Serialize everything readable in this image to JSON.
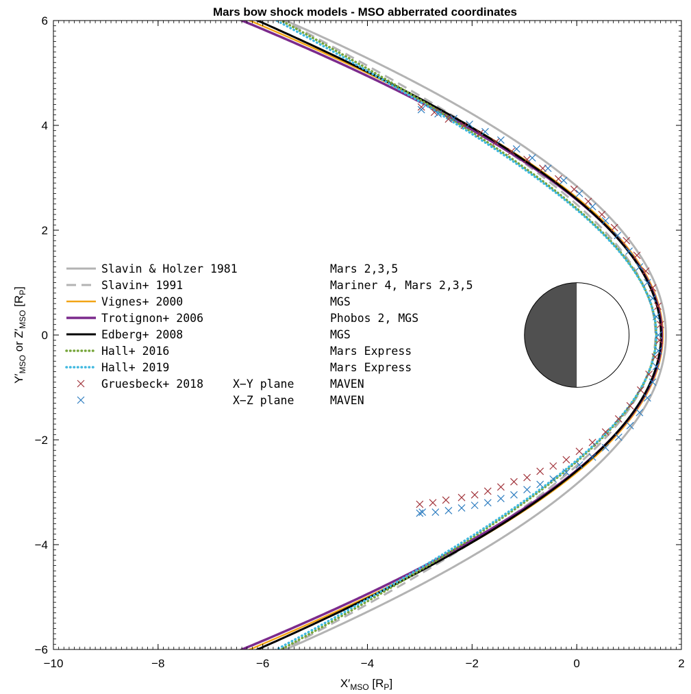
{
  "chart_data": {
    "type": "line",
    "title": "Mars bow shock models - MSO abberrated coordinates",
    "xlabel": {
      "main": "X",
      "prime": "′",
      "sub": "MSO",
      "unit_open": " [R",
      "unit_sub": "P",
      "unit_close": "]"
    },
    "ylabel": {
      "main1": "Y",
      "prime1": "′",
      "sub1": "MSO",
      "mid": " or ",
      "main2": "Z",
      "prime2": "′",
      "sub2": "MSO",
      "unit_open": " [R",
      "unit_sub": "P",
      "unit_close": "]"
    },
    "xlim": [
      -10,
      2
    ],
    "ylim": [
      -6,
      6
    ],
    "xticks": [
      -10,
      -8,
      -6,
      -4,
      -2,
      0,
      2
    ],
    "yticks": [
      -6,
      -4,
      -2,
      0,
      2,
      4,
      6
    ],
    "xtick_labels": [
      "−10",
      "−8",
      "−6",
      "−4",
      "−2",
      "0",
      "2"
    ],
    "ytick_labels": [
      "−6",
      "−4",
      "−2",
      "0",
      "2",
      "4",
      "6"
    ],
    "grid": false,
    "legend_position": "left",
    "planet": {
      "center": [
        0,
        0
      ],
      "radius": 1,
      "night_color": "#505050",
      "day_color": "#ffffff"
    },
    "series": [
      {
        "name": "Slavin & Holzer 1981",
        "plane": "",
        "mission": "Mars 2,3,5",
        "style": "solid",
        "color": "#b3b3b3",
        "width": 3,
        "conic": {
          "L": 2.33,
          "e": 1.02,
          "x0": 0.55
        }
      },
      {
        "name": "Slavin+ 1991",
        "plane": "",
        "mission": "Mariner 4, Mars 2,3,5",
        "style": "dashed",
        "color": "#b3b3b3",
        "width": 3,
        "conic": {
          "L": 1.94,
          "e": 1.08,
          "x0": 0.57
        }
      },
      {
        "name": "Vignes+ 2000",
        "plane": "",
        "mission": "MGS",
        "style": "solid",
        "color": "#f2a516",
        "width": 2.5,
        "conic": {
          "L": 2.04,
          "e": 1.03,
          "x0": 0.64
        }
      },
      {
        "name": "Trotignon+ 2006",
        "plane": "",
        "mission": "Phobos 2, MGS",
        "style": "solid",
        "color": "#7b2a8c",
        "width": 3.5,
        "conic": {
          "L": 2.0,
          "e": 1.03,
          "x0": 0.64
        }
      },
      {
        "name": "Edberg+ 2008",
        "plane": "",
        "mission": "MGS",
        "style": "solid",
        "color": "#000000",
        "width": 3,
        "conic": {
          "L": 2.02,
          "e": 1.04,
          "x0": 0.62
        }
      },
      {
        "name": "Hall+ 2016",
        "plane": "",
        "mission": "Mars Express",
        "style": "dotted",
        "color": "#76a53a",
        "width": 3.5,
        "conic": {
          "L": 1.76,
          "e": 1.1,
          "x0": 0.68
        }
      },
      {
        "name": "Hall+ 2019",
        "plane": "",
        "mission": "Mars Express",
        "style": "dotted",
        "color": "#3fb8df",
        "width": 3.5,
        "conic": {
          "L": 1.72,
          "e": 1.1,
          "x0": 0.7
        }
      }
    ],
    "scatter_series": [
      {
        "name": "Gruesbeck+ 2018",
        "plane": "X−Y plane",
        "mission": "MAVEN",
        "marker": "x",
        "color": "#a2363d",
        "points": [
          [
            -3.0,
            -3.23
          ],
          [
            -2.75,
            -3.2
          ],
          [
            -2.5,
            -3.15
          ],
          [
            -2.2,
            -3.1
          ],
          [
            -1.95,
            -3.05
          ],
          [
            -1.7,
            -2.98
          ],
          [
            -1.45,
            -2.9
          ],
          [
            -1.2,
            -2.8
          ],
          [
            -0.95,
            -2.72
          ],
          [
            -0.7,
            -2.6
          ],
          [
            -0.45,
            -2.5
          ],
          [
            -0.2,
            -2.38
          ],
          [
            0.05,
            -2.22
          ],
          [
            0.3,
            -2.05
          ],
          [
            0.55,
            -1.85
          ],
          [
            0.8,
            -1.6
          ],
          [
            1.02,
            -1.35
          ],
          [
            1.22,
            -1.05
          ],
          [
            1.38,
            -0.75
          ],
          [
            1.5,
            -0.42
          ],
          [
            1.58,
            -0.1
          ],
          [
            1.6,
            0.2
          ],
          [
            1.55,
            0.55
          ],
          [
            1.45,
            0.9
          ],
          [
            1.32,
            1.22
          ],
          [
            1.15,
            1.52
          ],
          [
            0.95,
            1.8
          ],
          [
            0.72,
            2.05
          ],
          [
            0.48,
            2.3
          ],
          [
            0.22,
            2.55
          ],
          [
            -0.05,
            2.78
          ],
          [
            -0.35,
            2.98
          ],
          [
            -0.65,
            3.18
          ],
          [
            -0.95,
            3.35
          ],
          [
            -1.25,
            3.5
          ],
          [
            -1.55,
            3.68
          ],
          [
            -1.85,
            3.85
          ],
          [
            -2.15,
            4.0
          ],
          [
            -2.45,
            4.12
          ],
          [
            -2.72,
            4.25
          ],
          [
            -2.97,
            4.35
          ]
        ]
      },
      {
        "name": "",
        "plane": "X−Z plane",
        "mission": "MAVEN",
        "marker": "x",
        "color": "#2f7ec1",
        "points": [
          [
            -3.0,
            -3.4
          ],
          [
            -2.95,
            -3.38
          ],
          [
            -2.7,
            -3.38
          ],
          [
            -2.45,
            -3.35
          ],
          [
            -2.2,
            -3.3
          ],
          [
            -1.95,
            -3.25
          ],
          [
            -1.7,
            -3.2
          ],
          [
            -1.45,
            -3.12
          ],
          [
            -1.2,
            -3.05
          ],
          [
            -0.95,
            -2.95
          ],
          [
            -0.7,
            -2.85
          ],
          [
            -0.45,
            -2.75
          ],
          [
            -0.2,
            -2.62
          ],
          [
            0.05,
            -2.48
          ],
          [
            0.3,
            -2.33
          ],
          [
            0.55,
            -2.15
          ],
          [
            0.8,
            -1.95
          ],
          [
            1.02,
            -1.73
          ],
          [
            1.2,
            -1.48
          ],
          [
            1.35,
            -1.2
          ],
          [
            1.45,
            -0.9
          ],
          [
            1.52,
            -0.6
          ],
          [
            1.56,
            -0.3
          ],
          [
            1.56,
            0.0
          ],
          [
            1.52,
            0.35
          ],
          [
            1.45,
            0.7
          ],
          [
            1.35,
            1.0
          ],
          [
            1.2,
            1.3
          ],
          [
            1.0,
            1.6
          ],
          [
            0.78,
            1.9
          ],
          [
            0.55,
            2.18
          ],
          [
            0.3,
            2.45
          ],
          [
            0.05,
            2.7
          ],
          [
            -0.25,
            2.95
          ],
          [
            -0.55,
            3.18
          ],
          [
            -0.85,
            3.38
          ],
          [
            -1.15,
            3.55
          ],
          [
            -1.45,
            3.72
          ],
          [
            -1.75,
            3.88
          ],
          [
            -2.05,
            4.02
          ],
          [
            -2.35,
            4.13
          ],
          [
            -2.65,
            4.22
          ],
          [
            -2.97,
            4.3
          ]
        ]
      }
    ]
  }
}
